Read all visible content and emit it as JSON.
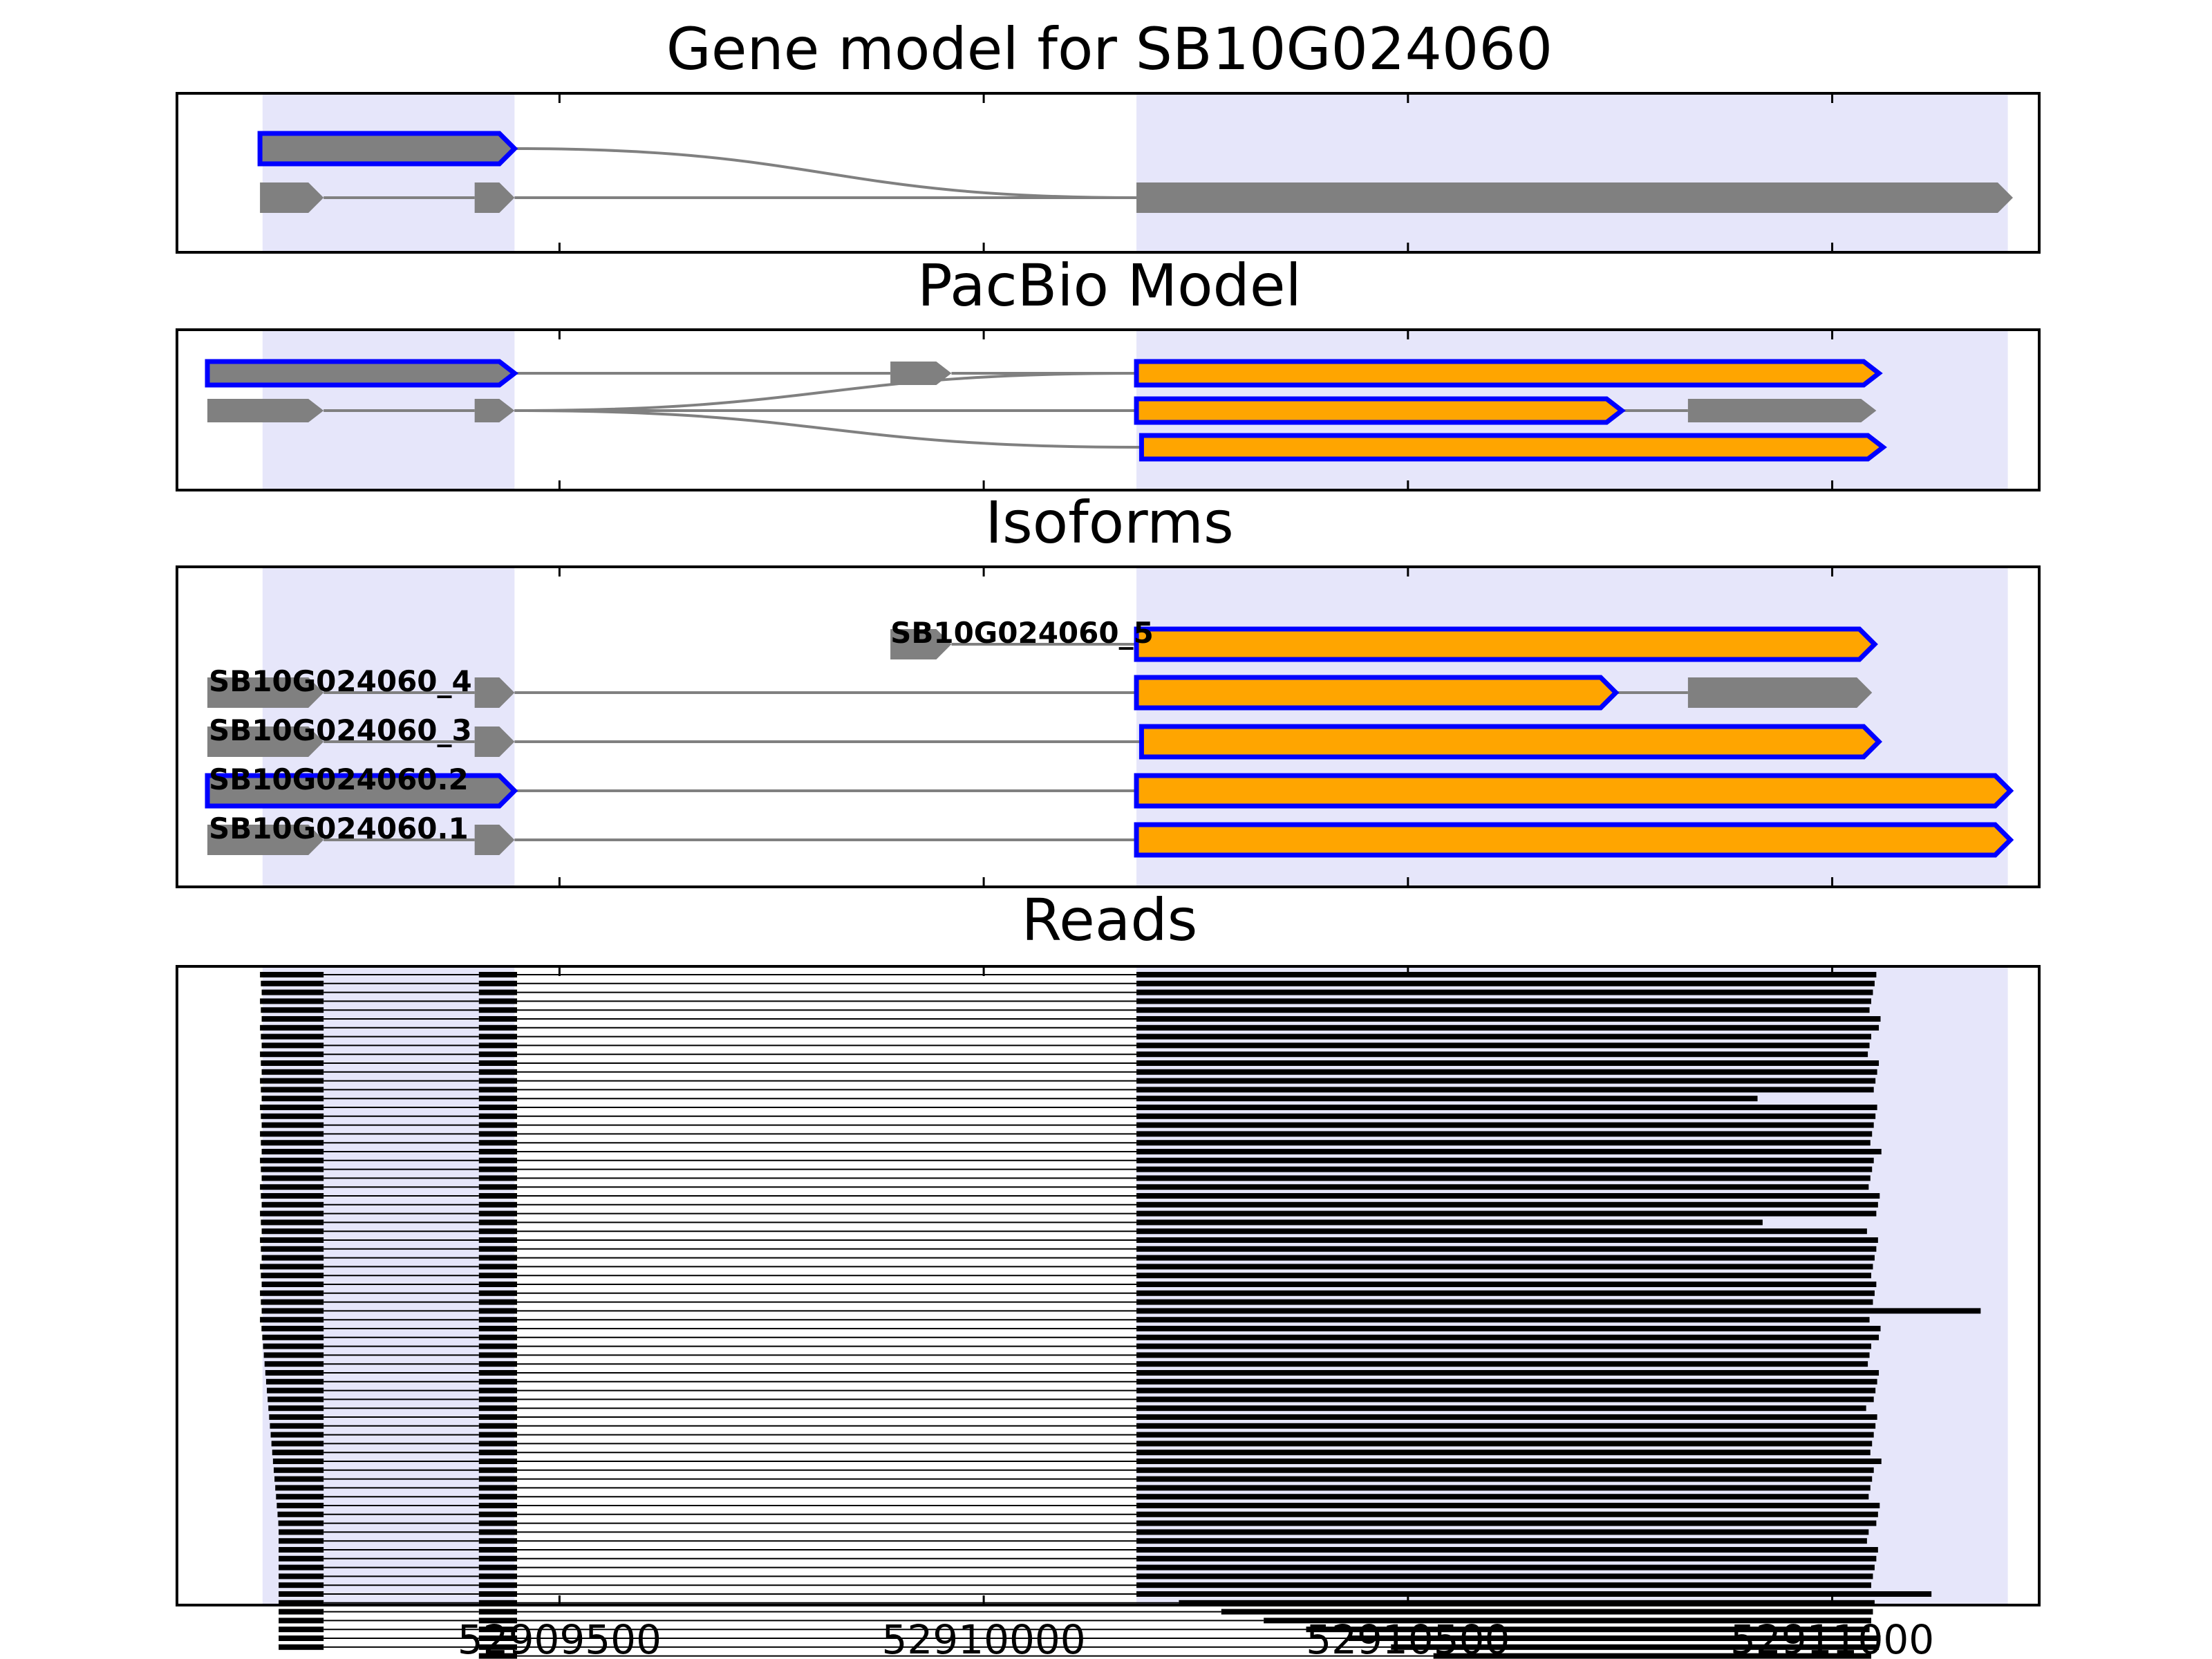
{
  "panels": [
    {
      "id": "gene_model",
      "title": "Gene model for SB10G024060"
    },
    {
      "id": "pacbio_model",
      "title": "PacBio Model"
    },
    {
      "id": "isoforms",
      "title": "Isoforms"
    },
    {
      "id": "reads",
      "title": "Reads"
    }
  ],
  "x_axis": {
    "ticks": [
      52909500,
      52910000,
      52910500,
      52911000
    ],
    "tick_labels": [
      "52909500",
      "52910000",
      "52910500",
      "52911000"
    ]
  },
  "colors": {
    "exon_gray": "#808080",
    "exon_highlight": "#FFA500",
    "outline_blue": "#0000FF",
    "shade": "#E6E6FA",
    "intron_line": "#808080",
    "reads": "#000000"
  },
  "shaded_regions": [
    [
      52909150,
      52909447
    ],
    [
      52910180,
      52911207
    ]
  ],
  "gene_model": {
    "transcripts": [
      {
        "exons": [
          [
            52909147,
            52909447
          ]
        ],
        "highlighted": true
      },
      {
        "exons": [
          [
            52909147,
            52909222
          ],
          [
            52909400,
            52909447
          ],
          [
            52910180,
            52911213
          ]
        ],
        "highlighted": false
      }
    ],
    "connectors": [
      [
        0,
        0,
        1,
        2
      ]
    ]
  },
  "pacbio_model": {
    "transcripts": [
      {
        "exons": [
          [
            52909085,
            52909447
          ],
          [
            52909890,
            52909962
          ],
          [
            52910180,
            52911055
          ]
        ],
        "highlighted": [
          true,
          false,
          true
        ]
      },
      {
        "exons": [
          [
            52909085,
            52909222
          ],
          [
            52909400,
            52909447
          ],
          [
            52910180,
            52910752
          ],
          [
            52910830,
            52911052
          ]
        ],
        "highlighted": [
          false,
          false,
          true,
          false
        ]
      },
      {
        "exons": [
          [
            52910186,
            52911060
          ]
        ],
        "highlighted": [
          true
        ]
      }
    ]
  },
  "isoforms": [
    {
      "name": "SB10G024060_5",
      "exons": [
        [
          52909890,
          52909962
        ],
        [
          52910180,
          52911050
        ]
      ],
      "highlighted": [
        false,
        true
      ]
    },
    {
      "name": "SB10G024060_4",
      "exons": [
        [
          52909085,
          52909222
        ],
        [
          52909400,
          52909447
        ],
        [
          52910180,
          52910745
        ],
        [
          52910830,
          52911047
        ]
      ],
      "highlighted": [
        false,
        false,
        true,
        false
      ]
    },
    {
      "name": "SB10G024060_3",
      "exons": [
        [
          52909085,
          52909222
        ],
        [
          52909400,
          52909447
        ],
        [
          52910186,
          52911055
        ]
      ],
      "highlighted": [
        false,
        false,
        true
      ]
    },
    {
      "name": "SB10G024060.2",
      "exons": [
        [
          52909085,
          52909447
        ],
        [
          52910180,
          52911210
        ]
      ],
      "highlighted": [
        true,
        true
      ]
    },
    {
      "name": "SB10G024060.1",
      "exons": [
        [
          52909085,
          52909222
        ],
        [
          52909400,
          52909447
        ],
        [
          52910180,
          52911210
        ]
      ],
      "highlighted": [
        false,
        false,
        true
      ]
    }
  ],
  "reads": {
    "count": 79,
    "exon1_end": 52909222,
    "exon2": [
      52909405,
      52909450
    ],
    "exon3_start": 52910180,
    "exon3_end_typical": 52911052,
    "notable_ends": [
      {
        "index": 14,
        "end": 52910912
      },
      {
        "index": 28,
        "end": 52910918
      },
      {
        "index": 38,
        "end": 52911175
      },
      {
        "index": 70,
        "end": 52911117
      }
    ]
  }
}
